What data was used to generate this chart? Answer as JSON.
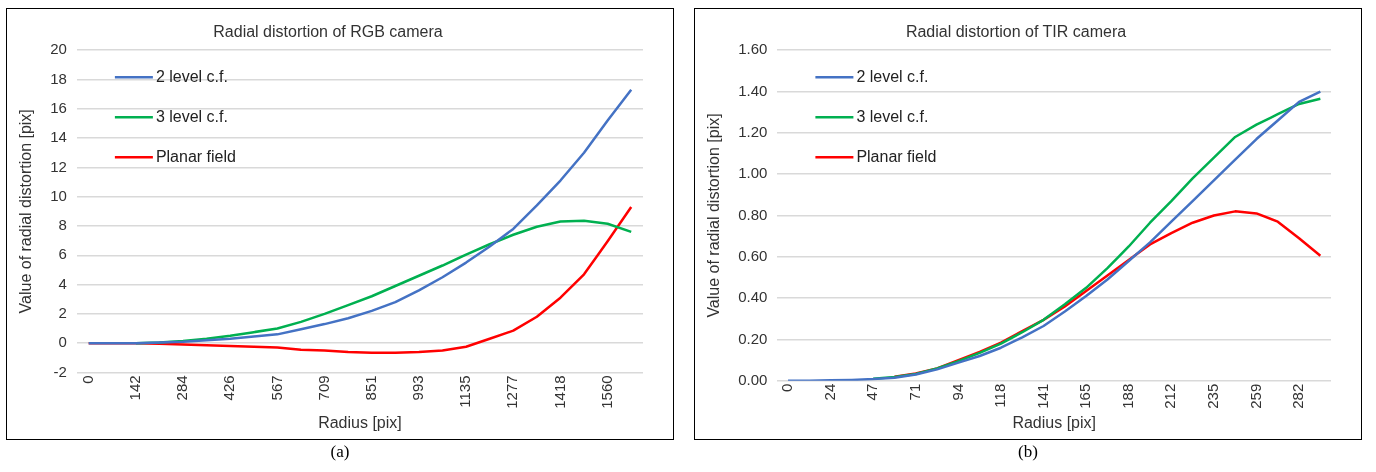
{
  "chart_data": [
    {
      "type": "line",
      "title": "Radial distortion of RGB camera",
      "xlabel": "Radius [pix]",
      "ylabel": "Value of radial distortion [pix]",
      "annotations": [
        "(a)"
      ],
      "categories": [
        "0",
        null,
        "142",
        null,
        "284",
        null,
        "426",
        null,
        "567",
        null,
        "709",
        null,
        "851",
        null,
        "993",
        null,
        "1135",
        null,
        "1277",
        null,
        "1418",
        null,
        "1560",
        null
      ],
      "series": [
        {
          "name": "2 level c.f.",
          "color": "#4472c4",
          "values": [
            0,
            0,
            0,
            0.05,
            0.1,
            0.2,
            0.3,
            0.45,
            0.6,
            0.95,
            1.3,
            1.7,
            2.2,
            2.8,
            3.6,
            4.5,
            5.5,
            6.6,
            7.8,
            9.4,
            11.1,
            13.0,
            15.2,
            17.3
          ]
        },
        {
          "name": "3 level c.f.",
          "color": "#00b050",
          "values": [
            null,
            null,
            0,
            0.05,
            0.15,
            0.3,
            0.5,
            0.75,
            1.0,
            1.45,
            2.0,
            2.6,
            3.2,
            3.9,
            4.6,
            5.3,
            6.05,
            6.75,
            7.4,
            7.95,
            8.3,
            8.35,
            8.15,
            7.6
          ]
        },
        {
          "name": "Planar field",
          "color": "#ff0000",
          "values": [
            0,
            0,
            0,
            -0.05,
            -0.1,
            -0.15,
            -0.2,
            -0.25,
            -0.3,
            -0.45,
            -0.5,
            -0.6,
            -0.65,
            -0.65,
            -0.6,
            -0.5,
            -0.25,
            0.3,
            0.85,
            1.8,
            3.1,
            4.7,
            6.95,
            9.3
          ]
        }
      ],
      "ylim": [
        -2,
        20
      ],
      "yticks": [
        -2,
        0,
        2,
        4,
        6,
        8,
        10,
        12,
        14,
        16,
        18,
        20
      ],
      "grid": "y",
      "legend": "top left",
      "marker": "none",
      "line_style": "solid"
    },
    {
      "type": "line",
      "title": "Radial distortion of TIR camera",
      "xlabel": "Radius [pix]",
      "ylabel": "Value of radial distortion [pix]",
      "annotations": [
        "(b)"
      ],
      "categories": [
        "0",
        null,
        "24",
        null,
        "47",
        null,
        "71",
        null,
        "94",
        null,
        "118",
        null,
        "141",
        null,
        "165",
        null,
        "188",
        null,
        "212",
        null,
        "235",
        null,
        "259",
        null,
        "282",
        null
      ],
      "series": [
        {
          "name": "2 level c.f.",
          "color": "#4472c4",
          "values": [
            0,
            0,
            0.002,
            0.004,
            0.008,
            0.015,
            0.03,
            0.055,
            0.088,
            0.12,
            0.16,
            0.21,
            0.265,
            0.335,
            0.41,
            0.49,
            0.58,
            0.67,
            0.77,
            0.87,
            0.97,
            1.07,
            1.17,
            1.26,
            1.35,
            1.4
          ]
        },
        {
          "name": "3 level c.f.",
          "color": "#00b050",
          "values": [
            null,
            null,
            null,
            null,
            0.01,
            0.018,
            0.033,
            0.06,
            0.095,
            0.135,
            0.18,
            0.235,
            0.295,
            0.37,
            0.45,
            0.545,
            0.65,
            0.765,
            0.87,
            0.98,
            1.08,
            1.18,
            1.24,
            1.29,
            1.34,
            1.365
          ]
        },
        {
          "name": "Planar field",
          "color": "#ff0000",
          "values": [
            null,
            null,
            null,
            null,
            null,
            0.02,
            0.035,
            0.06,
            0.1,
            0.14,
            0.185,
            0.24,
            0.295,
            0.36,
            0.435,
            0.51,
            0.585,
            0.66,
            0.715,
            0.765,
            0.8,
            0.82,
            0.81,
            0.77,
            0.69,
            0.605
          ]
        }
      ],
      "ylim": [
        0,
        1.6
      ],
      "yticks": [
        {
          "value": 0,
          "label": "0.00"
        },
        {
          "value": 0.2,
          "label": "0.20"
        },
        {
          "value": 0.4,
          "label": "0.40"
        },
        {
          "value": 0.6,
          "label": "0.60"
        },
        {
          "value": 0.8,
          "label": "0.80"
        },
        {
          "value": 1.0,
          "label": "1.00"
        },
        {
          "value": 1.2,
          "label": "1.20"
        },
        {
          "value": 1.4,
          "label": "1.40"
        },
        {
          "value": 1.6,
          "label": "1.60"
        }
      ],
      "grid": "y",
      "legend": "top left",
      "marker": "none",
      "line_style": "solid"
    }
  ]
}
